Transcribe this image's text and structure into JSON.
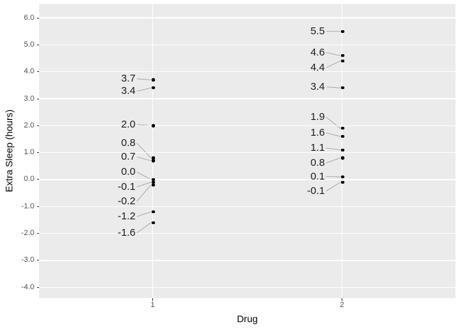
{
  "chart_data": {
    "type": "scatter",
    "title": "",
    "xlabel": "Drug",
    "ylabel": "Extra Sleep (hours)",
    "x_categories": [
      "1",
      "2"
    ],
    "y_tick_values": [
      6.0,
      5.0,
      4.0,
      3.0,
      2.0,
      1.0,
      0.0,
      -1.0,
      -2.0,
      -3.0,
      -4.0
    ],
    "y_tick_labels": [
      "6.0",
      "5.0",
      "4.0",
      "3.0",
      "2.0",
      "1.0",
      "0.0",
      "-1.0",
      "-2.0",
      "-3.0",
      "-4.0"
    ],
    "ylim": [
      -4.4,
      6.51
    ],
    "grid": "major-only",
    "legend": "none",
    "series": [
      {
        "name": "1",
        "points": [
          {
            "y": 3.7,
            "label": "3.7",
            "label_y": 3.74
          },
          {
            "y": 3.4,
            "label": "3.4",
            "label_y": 3.28
          },
          {
            "y": 2.0,
            "label": "2.0",
            "label_y": 2.04
          },
          {
            "y": 0.8,
            "label": "0.8",
            "label_y": 1.35
          },
          {
            "y": 0.7,
            "label": "0.7",
            "label_y": 0.84
          },
          {
            "y": 0.0,
            "label": "0.0",
            "label_y": 0.28
          },
          {
            "y": -0.1,
            "label": "-0.1",
            "label_y": -0.27
          },
          {
            "y": -0.2,
            "label": "-0.2",
            "label_y": -0.81
          },
          {
            "y": -1.2,
            "label": "-1.2",
            "label_y": -1.37
          },
          {
            "y": -1.6,
            "label": "-1.6",
            "label_y": -1.98
          }
        ]
      },
      {
        "name": "2",
        "points": [
          {
            "y": 5.5,
            "label": "5.5",
            "label_y": 5.5
          },
          {
            "y": 4.6,
            "label": "4.6",
            "label_y": 4.71
          },
          {
            "y": 4.4,
            "label": "4.4",
            "label_y": 4.15
          },
          {
            "y": 3.4,
            "label": "3.4",
            "label_y": 3.44
          },
          {
            "y": 1.9,
            "label": "1.9",
            "label_y": 2.32
          },
          {
            "y": 1.6,
            "label": "1.6",
            "label_y": 1.73
          },
          {
            "y": 1.1,
            "label": "1.1",
            "label_y": 1.17
          },
          {
            "y": 0.8,
            "label": "0.8",
            "label_y": 0.62
          },
          {
            "y": 0.1,
            "label": "0.1",
            "label_y": 0.11
          },
          {
            "y": -0.1,
            "label": "-0.1",
            "label_y": -0.43
          }
        ]
      }
    ],
    "colors": {
      "figure_background": "#FFFFFF",
      "panel_background": "#EBEBEB",
      "gridline": "#FFFFFF",
      "point": "#000000",
      "label_text": "#1A1A1A",
      "leader_line": "#999999",
      "tick_text": "#4D4D4D",
      "tick_mark": "#333333",
      "axis_title_text": "#000000"
    }
  }
}
